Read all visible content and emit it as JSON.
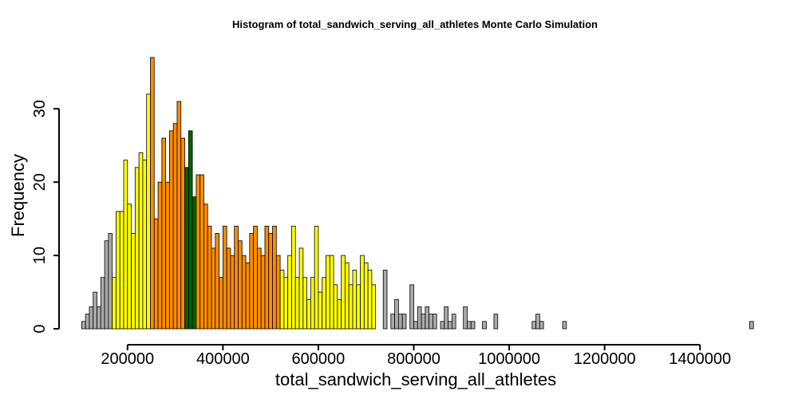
{
  "chart_data": {
    "type": "bar",
    "title": "Histogram of  total_sandwich_serving_all_athletes  Monte Carlo Simulation",
    "xlabel": "total_sandwich_serving_all_athletes",
    "ylabel": "Frequency",
    "xlim": [
      100000,
      1505000
    ],
    "ylim": [
      0,
      37
    ],
    "bin_width": 8000,
    "x_start": 104000,
    "x_ticks": [
      "200000",
      "400000",
      "600000",
      "800000",
      "1000000",
      "1200000",
      "1400000"
    ],
    "y_ticks": [
      "0",
      "10",
      "20",
      "30"
    ],
    "grid": false,
    "legend": "none",
    "colors": {
      "gray": "#aaaaaa",
      "yellow": "#ffff00",
      "orange": "#ff8c00",
      "green": "#006400",
      "outline": "#000000"
    },
    "values": [
      1,
      2,
      3,
      5,
      3,
      7,
      12,
      13,
      7,
      16,
      16,
      23,
      17,
      13,
      22,
      24,
      23,
      32,
      37,
      15,
      20,
      26,
      20,
      27,
      28,
      31,
      26,
      22,
      27,
      18,
      21,
      21,
      17,
      14,
      11,
      13,
      7,
      14,
      11,
      10,
      14,
      12,
      10,
      9,
      13,
      14,
      11,
      10,
      14,
      13,
      14,
      10,
      8,
      7,
      10,
      14,
      7,
      11,
      7,
      4,
      7,
      14,
      5,
      7,
      10,
      10,
      6,
      4,
      10,
      9,
      6,
      8,
      6,
      10,
      9,
      8,
      6,
      0,
      0,
      8,
      0,
      2,
      4,
      2,
      2,
      0,
      6,
      1,
      3,
      2,
      3,
      2,
      2,
      0,
      1,
      3,
      1,
      2,
      0,
      0,
      3,
      1,
      1,
      0,
      0,
      1,
      0,
      0,
      2,
      0,
      0,
      0,
      0,
      0,
      0,
      0,
      0,
      0,
      1,
      2,
      1,
      0,
      0,
      0,
      0,
      0,
      1,
      0,
      0,
      0,
      0,
      0,
      0,
      0,
      0,
      0,
      0,
      0,
      0,
      0,
      0,
      0,
      0,
      0,
      0,
      0,
      0,
      0,
      0,
      0,
      0,
      0,
      0,
      0,
      0,
      0,
      0,
      0,
      0,
      0,
      0,
      0,
      0,
      0,
      0,
      0,
      0,
      0,
      0,
      0,
      0,
      0,
      0,
      0,
      0,
      1
    ],
    "bar_colors": [
      "gray",
      "gray",
      "gray",
      "gray",
      "gray",
      "gray",
      "gray",
      "gray",
      "yellow",
      "yellow",
      "yellow",
      "yellow",
      "yellow",
      "yellow",
      "yellow",
      "yellow",
      "yellow",
      "yellow",
      "orange",
      "orange",
      "orange",
      "orange",
      "orange",
      "orange",
      "orange",
      "orange",
      "orange",
      "green",
      "green",
      "green",
      "orange",
      "orange",
      "orange",
      "orange",
      "orange",
      "orange",
      "orange",
      "orange",
      "orange",
      "orange",
      "orange",
      "orange",
      "orange",
      "orange",
      "orange",
      "orange",
      "orange",
      "orange",
      "orange",
      "orange",
      "orange",
      "orange",
      "yellow",
      "yellow",
      "yellow",
      "yellow",
      "yellow",
      "yellow",
      "yellow",
      "yellow",
      "yellow",
      "yellow",
      "yellow",
      "yellow",
      "yellow",
      "yellow",
      "yellow",
      "yellow",
      "yellow",
      "yellow",
      "yellow",
      "yellow",
      "yellow",
      "yellow",
      "yellow",
      "yellow",
      "yellow",
      "gray",
      "gray",
      "gray",
      "gray",
      "gray",
      "gray",
      "gray",
      "gray",
      "gray",
      "gray",
      "gray",
      "gray",
      "gray",
      "gray",
      "gray",
      "gray",
      "gray",
      "gray",
      "gray",
      "gray",
      "gray",
      "gray",
      "gray",
      "gray",
      "gray",
      "gray",
      "gray",
      "gray",
      "gray",
      "gray",
      "gray",
      "gray",
      "gray",
      "gray",
      "gray",
      "gray",
      "gray",
      "gray",
      "gray",
      "gray",
      "gray",
      "gray",
      "gray",
      "gray",
      "gray",
      "gray",
      "gray",
      "gray",
      "gray",
      "gray",
      "gray",
      "gray",
      "gray",
      "gray",
      "gray",
      "gray",
      "gray",
      "gray",
      "gray",
      "gray",
      "gray",
      "gray",
      "gray",
      "gray",
      "gray",
      "gray",
      "gray",
      "gray",
      "gray",
      "gray",
      "gray",
      "gray",
      "gray",
      "gray",
      "gray",
      "gray",
      "gray",
      "gray",
      "gray",
      "gray",
      "gray",
      "gray",
      "gray",
      "gray",
      "gray",
      "gray",
      "gray",
      "gray",
      "gray",
      "gray",
      "gray",
      "gray",
      "gray",
      "gray",
      "gray",
      "gray",
      "gray",
      "gray",
      "gray",
      "gray"
    ]
  }
}
